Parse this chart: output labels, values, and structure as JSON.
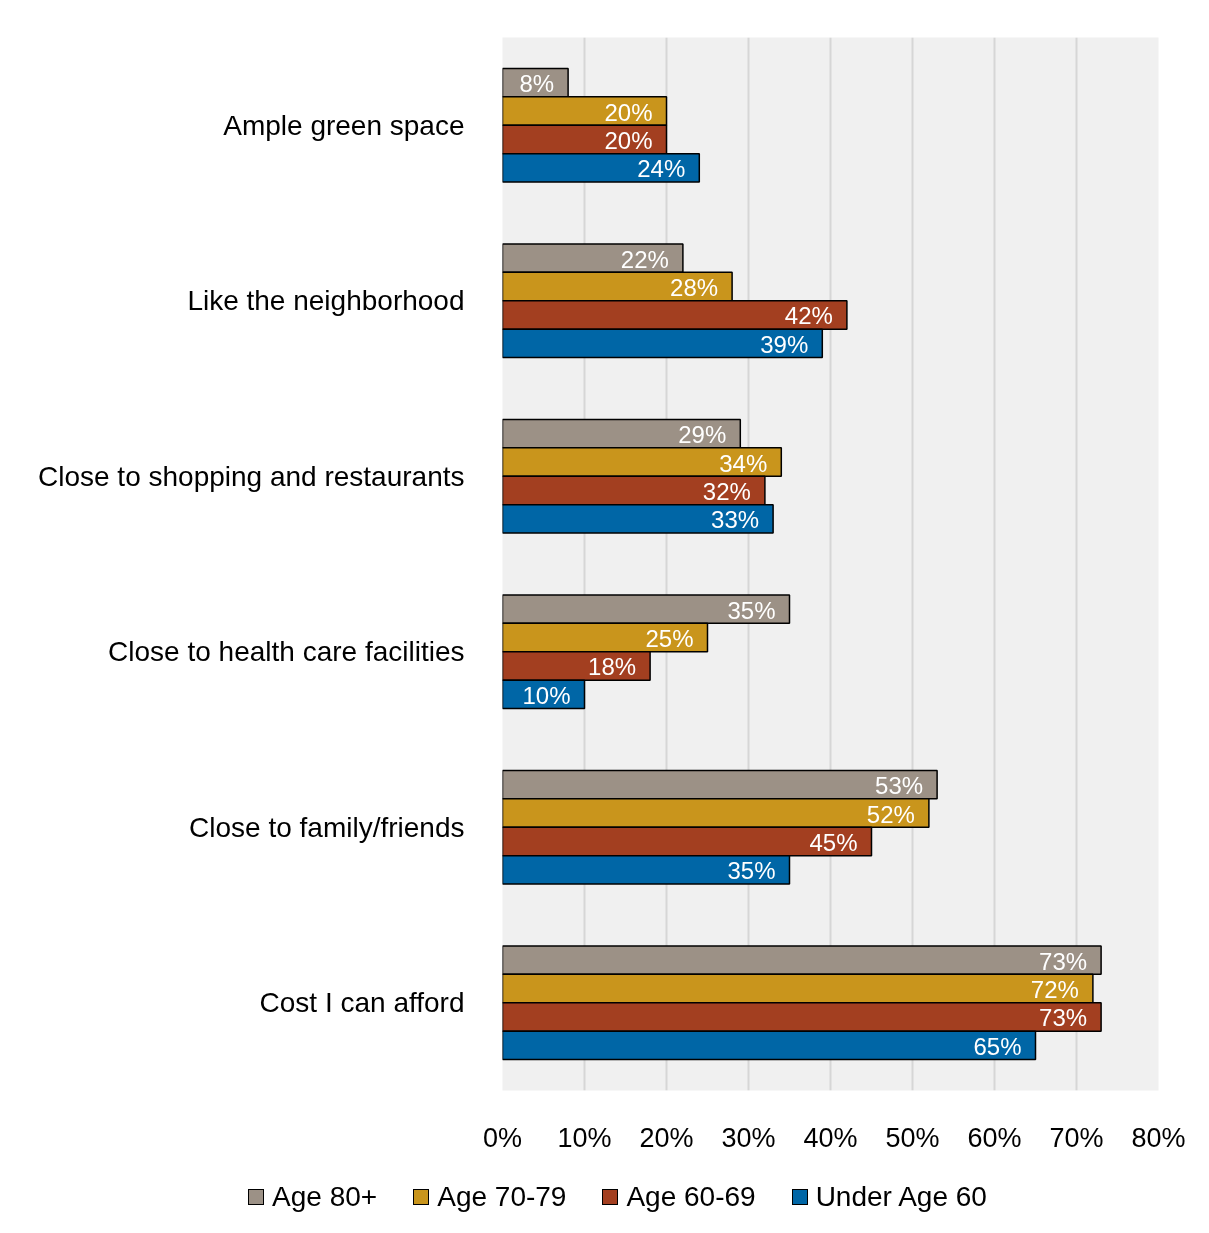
{
  "chart_data": {
    "type": "bar",
    "orientation": "horizontal",
    "categories": [
      "Ample green space",
      "Like the neighborhood",
      "Close to shopping and restaurants",
      "Close to health care facilities",
      "Close to family/friends",
      "Cost I can afford"
    ],
    "series": [
      {
        "name": "Age 80+",
        "color": "#9c9186",
        "values": [
          8,
          22,
          29,
          35,
          53,
          73
        ],
        "value_labels": [
          "8%",
          "22%",
          "29%",
          "35%",
          "53%",
          "73%"
        ]
      },
      {
        "name": "Age 70-79",
        "color": "#c9951c",
        "values": [
          20,
          28,
          34,
          25,
          52,
          72
        ],
        "value_labels": [
          "20%",
          "28%",
          "34%",
          "25%",
          "52%",
          "72%"
        ]
      },
      {
        "name": "Age 60-69",
        "color": "#a33f20",
        "values": [
          20,
          42,
          32,
          18,
          45,
          73
        ],
        "value_labels": [
          "20%",
          "42%",
          "32%",
          "18%",
          "45%",
          "73%"
        ]
      },
      {
        "name": "Under Age 60",
        "color": "#0066a6",
        "values": [
          24,
          39,
          33,
          10,
          35,
          65
        ],
        "value_labels": [
          "24%",
          "39%",
          "33%",
          "10%",
          "35%",
          "65%"
        ]
      }
    ],
    "xlim": [
      0,
      80
    ],
    "xticks": [
      {
        "value": 0,
        "label": "0%"
      },
      {
        "value": 10,
        "label": "10%"
      },
      {
        "value": 20,
        "label": "20%"
      },
      {
        "value": 30,
        "label": "30%"
      },
      {
        "value": 40,
        "label": "40%"
      },
      {
        "value": 50,
        "label": "50%"
      },
      {
        "value": 60,
        "label": "60%"
      },
      {
        "value": 70,
        "label": "70%"
      },
      {
        "value": 80,
        "label": "80%"
      }
    ],
    "grid": "x",
    "legend": "bottom"
  }
}
